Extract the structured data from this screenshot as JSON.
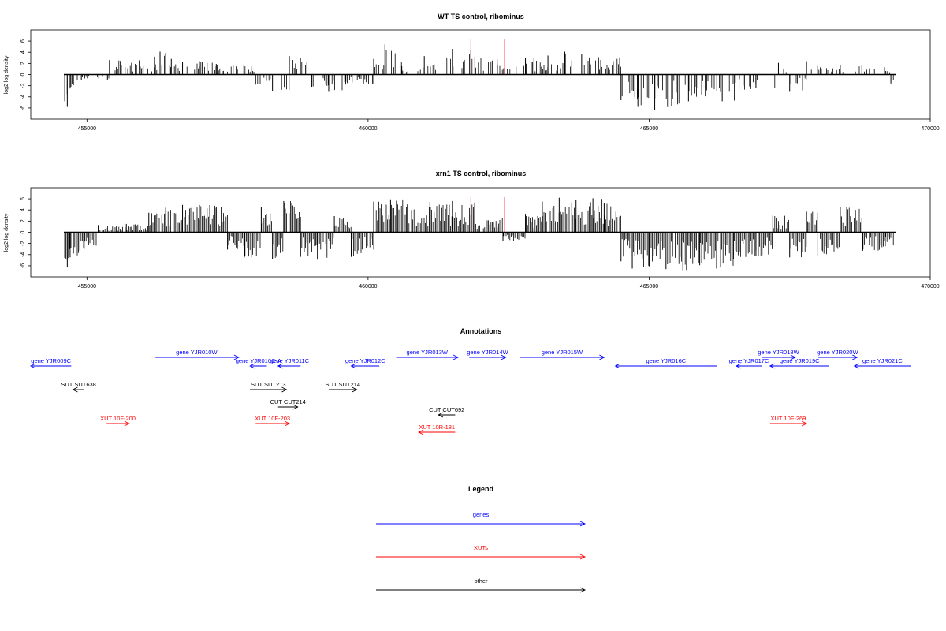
{
  "chart_data": [
    {
      "type": "bar",
      "title": "WT TS control, ribominus",
      "xlabel": "",
      "ylabel": "log2 log density",
      "xlim": [
        454000,
        470000
      ],
      "ylim": [
        -7,
        7
      ],
      "x_ticks": [
        455000,
        460000,
        465000,
        470000
      ],
      "y_ticks": [
        6,
        4,
        2,
        0,
        -2,
        -4,
        -6
      ],
      "grid": false,
      "series": [
        {
          "color": "#000000",
          "x": [
            454650,
            454700,
            454900,
            455400,
            456000,
            456200,
            456300,
            456500,
            456700,
            457000,
            457300,
            457600,
            458000,
            458300,
            458600,
            459000,
            459300,
            459600,
            460100,
            460300,
            460600,
            461000,
            461500,
            461900,
            462300,
            462800,
            463200,
            463500,
            463800,
            464100,
            464500,
            464800,
            465100,
            465400,
            465700,
            466000,
            466300,
            466600,
            466900,
            467300,
            467500,
            467800,
            468000,
            468400,
            469300
          ],
          "values": [
            -5.8,
            -2.5,
            -1.0,
            2.6,
            1.5,
            3.2,
            4.1,
            2.8,
            2.2,
            2.4,
            1.9,
            1.6,
            -1.8,
            -3.0,
            3.3,
            -2.2,
            -3.1,
            -1.8,
            2.8,
            5.4,
            1.5,
            3.3,
            4.6,
            3.2,
            1.8,
            2.9,
            3.4,
            4.1,
            3.6,
            3.1,
            -4.6,
            -5.8,
            -6.4,
            -5.6,
            -4.8,
            -3.9,
            -4.8,
            -3.0,
            -2.4,
            2.1,
            -3.1,
            2.4,
            1.6,
            1.7,
            -1.6
          ]
        },
        {
          "color": "#ff0000",
          "x": [
            461830,
            462430
          ],
          "values": [
            6.3,
            6.3
          ]
        }
      ]
    },
    {
      "type": "bar",
      "title": "xrn1 TS control, ribominus",
      "xlabel": "",
      "ylabel": "log2 log density",
      "xlim": [
        454000,
        470000
      ],
      "ylim": [
        -7,
        7
      ],
      "x_ticks": [
        455000,
        460000,
        465000,
        470000
      ],
      "y_ticks": [
        6,
        4,
        2,
        0,
        -2,
        -4,
        -6
      ],
      "grid": false,
      "series": [
        {
          "color": "#000000",
          "x": [
            454650,
            454700,
            454950,
            455200,
            455700,
            456100,
            456400,
            456700,
            457000,
            457300,
            457500,
            457800,
            458100,
            458300,
            458500,
            458800,
            459100,
            459400,
            459700,
            460100,
            460400,
            460700,
            461100,
            461500,
            461900,
            462400,
            462800,
            463100,
            463400,
            463700,
            464000,
            464200,
            464500,
            464700,
            465000,
            465300,
            465600,
            465900,
            466200,
            466500,
            466900,
            467200,
            467500,
            467800,
            468000,
            468400,
            468800,
            469200
          ],
          "values": [
            -6.3,
            -4.5,
            -3.0,
            1.3,
            1.5,
            3.5,
            4.4,
            4.9,
            4.9,
            4.6,
            -3.1,
            -4.5,
            4.5,
            -4.8,
            5.6,
            -4.4,
            -4.9,
            2.9,
            -4.4,
            5.5,
            5.9,
            5.0,
            5.4,
            5.6,
            2.6,
            -1.5,
            3.3,
            5.5,
            6.2,
            5.8,
            6.1,
            5.2,
            -5.2,
            -6.5,
            -6.1,
            -6.6,
            -6.8,
            -5.9,
            -6.5,
            -4.8,
            -4.3,
            3.0,
            -4.5,
            3.7,
            -4.2,
            4.6,
            -3.3,
            -2.5
          ]
        },
        {
          "color": "#ff0000",
          "x": [
            461830,
            462430
          ],
          "values": [
            6.3,
            6.3
          ]
        }
      ]
    }
  ],
  "annotations": {
    "title": "Annotations",
    "genes": [
      {
        "label": "gene YJR009C",
        "start": 454000,
        "end": 454720,
        "strand": "-",
        "row": 1
      },
      {
        "label": "gene YJR010W",
        "start": 456200,
        "end": 457700,
        "strand": "+",
        "row": 0
      },
      {
        "label": "gene YJR010C-A",
        "start": 457900,
        "end": 458200,
        "strand": "-",
        "row": 1
      },
      {
        "label": "gene YJR011C",
        "start": 458400,
        "end": 458800,
        "strand": "-",
        "row": 1
      },
      {
        "label": "gene YJR012C",
        "start": 459700,
        "end": 460200,
        "strand": "-",
        "row": 1
      },
      {
        "label": "gene YJR013W",
        "start": 460500,
        "end": 461600,
        "strand": "+",
        "row": 0
      },
      {
        "label": "gene YJR014W",
        "start": 461800,
        "end": 462450,
        "strand": "+",
        "row": 0
      },
      {
        "label": "gene YJR015W",
        "start": 462700,
        "end": 464200,
        "strand": "+",
        "row": 0
      },
      {
        "label": "gene YJR016C",
        "start": 464400,
        "end": 466200,
        "strand": "-",
        "row": 1
      },
      {
        "label": "gene YJR017C",
        "start": 466550,
        "end": 467000,
        "strand": "-",
        "row": 1
      },
      {
        "label": "gene YJR018W",
        "start": 467000,
        "end": 467600,
        "strand": "+",
        "row": 0
      },
      {
        "label": "gene YJR019C",
        "start": 467150,
        "end": 468200,
        "strand": "-",
        "row": 1
      },
      {
        "label": "gene YJR020W",
        "start": 468000,
        "end": 468700,
        "strand": "+",
        "row": 0
      },
      {
        "label": "gene YJR021C",
        "start": 468650,
        "end": 469650,
        "strand": "-",
        "row": 1
      }
    ],
    "other": [
      {
        "label": "SUT SUT638",
        "start": 454750,
        "end": 454950,
        "strand": "-",
        "row": 0
      },
      {
        "label": "SUT SUT213",
        "start": 457900,
        "end": 458550,
        "strand": "+",
        "row": 0
      },
      {
        "label": "SUT SUT214",
        "start": 459300,
        "end": 459800,
        "strand": "+",
        "row": 0
      },
      {
        "label": "CUT CUT214",
        "start": 458400,
        "end": 458750,
        "strand": "+",
        "row": 1
      },
      {
        "label": "CUT CUT692",
        "start": 461250,
        "end": 461550,
        "strand": "-",
        "row": 2
      }
    ],
    "xuts": [
      {
        "label": "XUT 10F-200",
        "start": 455350,
        "end": 455750,
        "strand": "+",
        "row": 0
      },
      {
        "label": "XUT 10F-203",
        "start": 458000,
        "end": 458600,
        "strand": "+",
        "row": 0
      },
      {
        "label": "XUT 10R-181",
        "start": 460900,
        "end": 461550,
        "strand": "-",
        "row": 1
      },
      {
        "label": "XUT 10F-269",
        "start": 467150,
        "end": 467800,
        "strand": "+",
        "row": 0
      }
    ]
  },
  "legend": {
    "title": "Legend",
    "items": [
      {
        "label": "genes",
        "color": "#0000ff"
      },
      {
        "label": "XUTs",
        "color": "#ff0000"
      },
      {
        "label": "other",
        "color": "#000000"
      }
    ]
  }
}
